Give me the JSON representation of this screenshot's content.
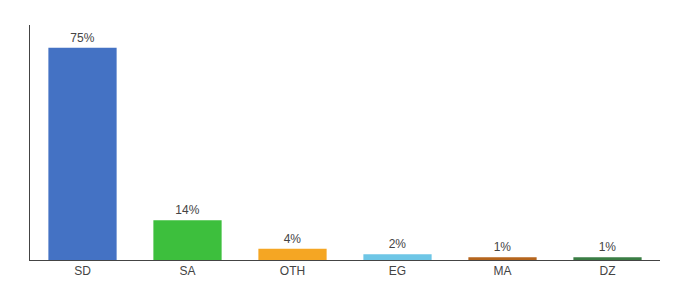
{
  "chart_data": {
    "type": "bar",
    "categories": [
      "SD",
      "SA",
      "OTH",
      "EG",
      "MA",
      "DZ"
    ],
    "values": [
      75,
      14,
      4,
      2,
      1,
      1
    ],
    "value_labels": [
      "75%",
      "14%",
      "4%",
      "2%",
      "1%",
      "1%"
    ],
    "data_labels": true,
    "colors": [
      "#4472C4",
      "#3DBF3D",
      "#F5A623",
      "#6EC6E6",
      "#B5651D",
      "#3A7D44"
    ],
    "ylim": [
      0,
      83
    ],
    "tick_labels": "x",
    "grid": false
  }
}
